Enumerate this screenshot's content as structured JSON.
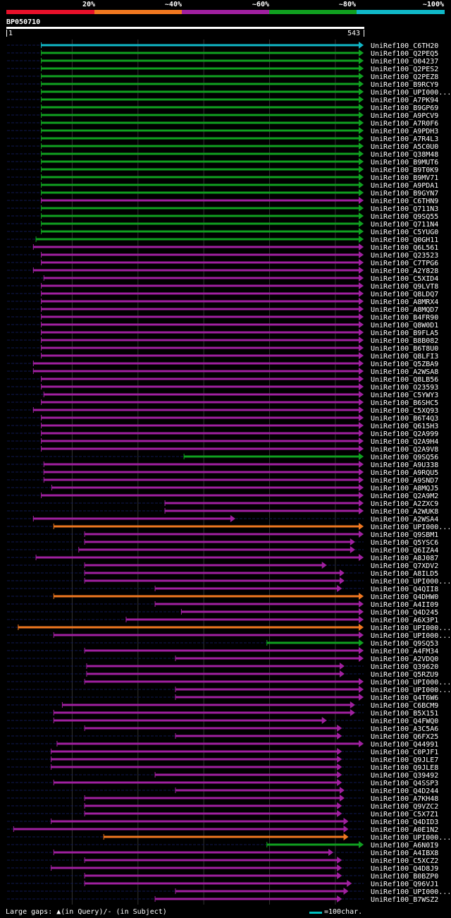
{
  "legend": {
    "labels": [
      "20%",
      "~40%",
      "~60%",
      "~80%",
      "~100%"
    ],
    "colors": [
      "#e8102a",
      "#f07820",
      "#a020a0",
      "#10a020",
      "#10b8c8"
    ]
  },
  "query": {
    "name": "BP050710",
    "start": "1",
    "end": "543"
  },
  "footer": {
    "gaps_text": "Large gaps: ▲(in Query)/- (in Subject)",
    "scale_text": "=100char."
  },
  "chart_data": {
    "type": "alignment",
    "query_length": 543,
    "colors": {
      "cyan": "#10b8c8",
      "green": "#10a020",
      "purple": "#a020a0",
      "orange": "#f07820"
    },
    "hits": [
      {
        "label": "UniRef100_C6TH20",
        "s": 53,
        "e": 543,
        "c": "cyan"
      },
      {
        "label": "UniRef100_Q2PEQ5",
        "s": 53,
        "e": 543,
        "c": "green"
      },
      {
        "label": "UniRef100_O04237",
        "s": 53,
        "e": 543,
        "c": "green"
      },
      {
        "label": "UniRef100_Q2PES2",
        "s": 53,
        "e": 543,
        "c": "green"
      },
      {
        "label": "UniRef100_Q2PEZ8",
        "s": 53,
        "e": 543,
        "c": "green"
      },
      {
        "label": "UniRef100_B9RCY9",
        "s": 53,
        "e": 543,
        "c": "green"
      },
      {
        "label": "UniRef100_UPI000...",
        "s": 53,
        "e": 543,
        "c": "green"
      },
      {
        "label": "UniRef100_A7PK94",
        "s": 53,
        "e": 543,
        "c": "green"
      },
      {
        "label": "UniRef100_B9GP69",
        "s": 53,
        "e": 543,
        "c": "green"
      },
      {
        "label": "UniRef100_A9PCV9",
        "s": 53,
        "e": 543,
        "c": "green"
      },
      {
        "label": "UniRef100_A7R0F6",
        "s": 53,
        "e": 543,
        "c": "green"
      },
      {
        "label": "UniRef100_A9PDH3",
        "s": 53,
        "e": 543,
        "c": "green"
      },
      {
        "label": "UniRef100_A7R4L3",
        "s": 53,
        "e": 543,
        "c": "green"
      },
      {
        "label": "UniRef100_A5C0U0",
        "s": 53,
        "e": 543,
        "c": "green"
      },
      {
        "label": "UniRef100_Q38M48",
        "s": 53,
        "e": 543,
        "c": "green"
      },
      {
        "label": "UniRef100_B9MUT6",
        "s": 53,
        "e": 543,
        "c": "green"
      },
      {
        "label": "UniRef100_B9T0K9",
        "s": 53,
        "e": 543,
        "c": "green"
      },
      {
        "label": "UniRef100_B9MV71",
        "s": 53,
        "e": 543,
        "c": "green"
      },
      {
        "label": "UniRef100_A9PDA1",
        "s": 53,
        "e": 543,
        "c": "green"
      },
      {
        "label": "UniRef100_B9GYN7",
        "s": 53,
        "e": 543,
        "c": "green"
      },
      {
        "label": "UniRef100_C6THN9",
        "s": 53,
        "e": 543,
        "c": "purple"
      },
      {
        "label": "UniRef100_Q711N3",
        "s": 53,
        "e": 543,
        "c": "green"
      },
      {
        "label": "UniRef100_Q9SQ55",
        "s": 53,
        "e": 543,
        "c": "green"
      },
      {
        "label": "UniRef100_Q711N4",
        "s": 53,
        "e": 543,
        "c": "green"
      },
      {
        "label": "UniRef100_C5YUG0",
        "s": 53,
        "e": 543,
        "c": "green"
      },
      {
        "label": "UniRef100_Q0GH11",
        "s": 45,
        "e": 543,
        "c": "green"
      },
      {
        "label": "UniRef100_Q6L561",
        "s": 41,
        "e": 543,
        "c": "purple"
      },
      {
        "label": "UniRef100_Q23523",
        "s": 53,
        "e": 543,
        "c": "purple"
      },
      {
        "label": "UniRef100_C7TPG6",
        "s": 53,
        "e": 543,
        "c": "purple"
      },
      {
        "label": "UniRef100_A2Y828",
        "s": 41,
        "e": 543,
        "c": "purple"
      },
      {
        "label": "UniRef100_C5XID4",
        "s": 57,
        "e": 543,
        "c": "purple"
      },
      {
        "label": "UniRef100_Q9LVT8",
        "s": 53,
        "e": 543,
        "c": "purple"
      },
      {
        "label": "UniRef100_Q8LDQ7",
        "s": 53,
        "e": 543,
        "c": "purple"
      },
      {
        "label": "UniRef100_A8MRX4",
        "s": 53,
        "e": 543,
        "c": "purple"
      },
      {
        "label": "UniRef100_A8MQD7",
        "s": 53,
        "e": 543,
        "c": "purple"
      },
      {
        "label": "UniRef100_B4FR90",
        "s": 53,
        "e": 543,
        "c": "purple"
      },
      {
        "label": "UniRef100_Q8W0D1",
        "s": 53,
        "e": 543,
        "c": "purple"
      },
      {
        "label": "UniRef100_B9FLA5",
        "s": 53,
        "e": 543,
        "c": "purple"
      },
      {
        "label": "UniRef100_B8B082",
        "s": 53,
        "e": 543,
        "c": "purple"
      },
      {
        "label": "UniRef100_B6T8U0",
        "s": 53,
        "e": 543,
        "c": "purple"
      },
      {
        "label": "UniRef100_Q8LFI3",
        "s": 53,
        "e": 543,
        "c": "purple"
      },
      {
        "label": "UniRef100_Q5ZBA9",
        "s": 41,
        "e": 543,
        "c": "purple"
      },
      {
        "label": "UniRef100_A2WSA8",
        "s": 41,
        "e": 543,
        "c": "purple"
      },
      {
        "label": "UniRef100_Q8LB56",
        "s": 53,
        "e": 543,
        "c": "purple"
      },
      {
        "label": "UniRef100_O23593",
        "s": 53,
        "e": 543,
        "c": "purple"
      },
      {
        "label": "UniRef100_C5YWY3",
        "s": 57,
        "e": 543,
        "c": "purple"
      },
      {
        "label": "UniRef100_B6SHC5",
        "s": 53,
        "e": 543,
        "c": "purple"
      },
      {
        "label": "UniRef100_C5XQ93",
        "s": 41,
        "e": 543,
        "c": "purple"
      },
      {
        "label": "UniRef100_B6T4Q3",
        "s": 53,
        "e": 543,
        "c": "purple"
      },
      {
        "label": "UniRef100_Q615H3",
        "s": 53,
        "e": 543,
        "c": "purple"
      },
      {
        "label": "UniRef100_Q2A999",
        "s": 53,
        "e": 543,
        "c": "purple"
      },
      {
        "label": "UniRef100_Q2A9H4",
        "s": 53,
        "e": 543,
        "c": "purple"
      },
      {
        "label": "UniRef100_Q2A9V8",
        "s": 53,
        "e": 543,
        "c": "purple"
      },
      {
        "label": "UniRef100_Q9SQ56",
        "s": 270,
        "e": 543,
        "c": "green"
      },
      {
        "label": "UniRef100_A9U338",
        "s": 57,
        "e": 543,
        "c": "purple"
      },
      {
        "label": "UniRef100_A9RQU5",
        "s": 57,
        "e": 543,
        "c": "purple"
      },
      {
        "label": "UniRef100_A9SND7",
        "s": 57,
        "e": 543,
        "c": "purple"
      },
      {
        "label": "UniRef100_A8MQJ5",
        "s": 69,
        "e": 543,
        "c": "purple"
      },
      {
        "label": "UniRef100_Q2A9M2",
        "s": 53,
        "e": 543,
        "c": "purple"
      },
      {
        "label": "UniRef100_A2ZXC9",
        "s": 241,
        "e": 543,
        "c": "purple"
      },
      {
        "label": "UniRef100_A2WUK8",
        "s": 241,
        "e": 543,
        "c": "purple"
      },
      {
        "label": "UniRef100_A2WSA4",
        "s": 41,
        "e": 348,
        "c": "purple"
      },
      {
        "label": "UniRef100_UPI000...",
        "s": 72,
        "e": 543,
        "c": "orange"
      },
      {
        "label": "UniRef100_Q9SBM1",
        "s": 119,
        "e": 543,
        "c": "purple"
      },
      {
        "label": "UniRef100_Q5YSC6",
        "s": 119,
        "e": 530,
        "c": "purple"
      },
      {
        "label": "UniRef100_Q6IZA4",
        "s": 110,
        "e": 530,
        "c": "purple"
      },
      {
        "label": "UniRef100_A8J087",
        "s": 45,
        "e": 543,
        "c": "purple"
      },
      {
        "label": "UniRef100_Q7XDV2",
        "s": 119,
        "e": 487,
        "c": "purple"
      },
      {
        "label": "UniRef100_A8ILD5",
        "s": 119,
        "e": 514,
        "c": "purple"
      },
      {
        "label": "UniRef100_UPI000...",
        "s": 119,
        "e": 514,
        "c": "purple"
      },
      {
        "label": "UniRef100_Q4QII8",
        "s": 226,
        "e": 510,
        "c": "purple"
      },
      {
        "label": "UniRef100_Q4DHW0",
        "s": 72,
        "e": 543,
        "c": "orange"
      },
      {
        "label": "UniRef100_A4II09",
        "s": 226,
        "e": 543,
        "c": "purple"
      },
      {
        "label": "UniRef100_Q4D245",
        "s": 266,
        "e": 543,
        "c": "purple"
      },
      {
        "label": "UniRef100_A6X3P1",
        "s": 182,
        "e": 543,
        "c": "purple"
      },
      {
        "label": "UniRef100_UPI000...",
        "s": 18,
        "e": 543,
        "c": "orange"
      },
      {
        "label": "UniRef100_UPI000...",
        "s": 72,
        "e": 543,
        "c": "purple"
      },
      {
        "label": "UniRef100_Q9SQ53",
        "s": 396,
        "e": 543,
        "c": "green"
      },
      {
        "label": "UniRef100_A4FM34",
        "s": 119,
        "e": 543,
        "c": "purple"
      },
      {
        "label": "UniRef100_A2VDQ0",
        "s": 257,
        "e": 543,
        "c": "purple"
      },
      {
        "label": "UniRef100_Q39620",
        "s": 122,
        "e": 514,
        "c": "purple"
      },
      {
        "label": "UniRef100_Q5RZU9",
        "s": 122,
        "e": 514,
        "c": "purple"
      },
      {
        "label": "UniRef100_UPI000...",
        "s": 119,
        "e": 543,
        "c": "purple"
      },
      {
        "label": "UniRef100_UPI000...",
        "s": 257,
        "e": 543,
        "c": "purple"
      },
      {
        "label": "UniRef100_Q4T6W6",
        "s": 257,
        "e": 543,
        "c": "purple"
      },
      {
        "label": "UniRef100_C6BCM9",
        "s": 85,
        "e": 530,
        "c": "purple"
      },
      {
        "label": "UniRef100_B5X151",
        "s": 72,
        "e": 530,
        "c": "purple"
      },
      {
        "label": "UniRef100_Q4FWQ0",
        "s": 72,
        "e": 487,
        "c": "purple"
      },
      {
        "label": "UniRef100_A3C5A6",
        "s": 119,
        "e": 510,
        "c": "purple"
      },
      {
        "label": "UniRef100_Q6FX25",
        "s": 257,
        "e": 510,
        "c": "purple"
      },
      {
        "label": "UniRef100_Q44991",
        "s": 77,
        "e": 543,
        "c": "purple"
      },
      {
        "label": "UniRef100_C0PJF1",
        "s": 68,
        "e": 510,
        "c": "purple"
      },
      {
        "label": "UniRef100_Q9JLE7",
        "s": 68,
        "e": 510,
        "c": "purple"
      },
      {
        "label": "UniRef100_Q9JLE8",
        "s": 68,
        "e": 510,
        "c": "purple"
      },
      {
        "label": "UniRef100_Q39492",
        "s": 226,
        "e": 510,
        "c": "purple"
      },
      {
        "label": "UniRef100_Q4SSP3",
        "s": 72,
        "e": 510,
        "c": "purple"
      },
      {
        "label": "UniRef100_Q4D244",
        "s": 257,
        "e": 514,
        "c": "purple"
      },
      {
        "label": "UniRef100_A7KH48",
        "s": 119,
        "e": 514,
        "c": "purple"
      },
      {
        "label": "UniRef100_Q9VZC2",
        "s": 119,
        "e": 510,
        "c": "purple"
      },
      {
        "label": "UniRef100_C5X7Z1",
        "s": 119,
        "e": 510,
        "c": "purple"
      },
      {
        "label": "UniRef100_Q4DID3",
        "s": 68,
        "e": 520,
        "c": "purple"
      },
      {
        "label": "UniRef100_A0E1N2",
        "s": 11,
        "e": 520,
        "c": "purple"
      },
      {
        "label": "UniRef100_UPI000...",
        "s": 148,
        "e": 520,
        "c": "orange"
      },
      {
        "label": "UniRef100_A6N0I9",
        "s": 396,
        "e": 543,
        "c": "green"
      },
      {
        "label": "UniRef100_A4IBX8",
        "s": 72,
        "e": 497,
        "c": "purple"
      },
      {
        "label": "UniRef100_C5XCZ2",
        "s": 119,
        "e": 510,
        "c": "purple"
      },
      {
        "label": "UniRef100_Q4D8J9",
        "s": 68,
        "e": 510,
        "c": "purple"
      },
      {
        "label": "UniRef100_B0BZP0",
        "s": 119,
        "e": 510,
        "c": "purple"
      },
      {
        "label": "UniRef100_Q96VJ1",
        "s": 119,
        "e": 525,
        "c": "purple"
      },
      {
        "label": "UniRef100_UPI000...",
        "s": 257,
        "e": 520,
        "c": "purple"
      },
      {
        "label": "UniRef100_B7WSZ2",
        "s": 226,
        "e": 510,
        "c": "purple"
      }
    ]
  }
}
